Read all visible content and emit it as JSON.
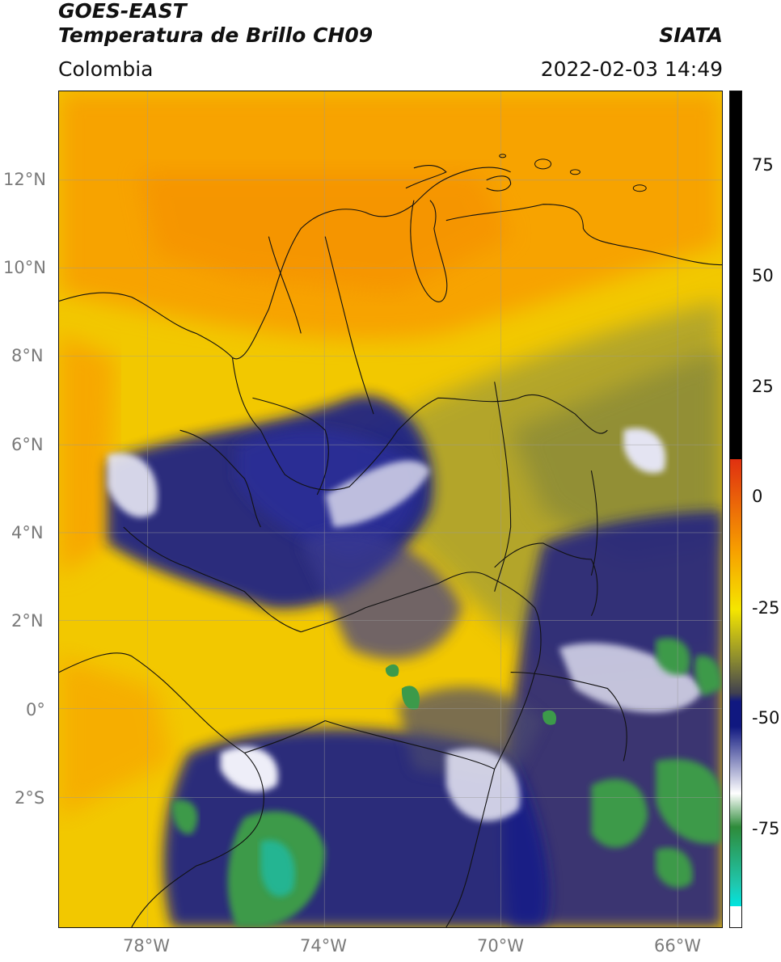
{
  "header": {
    "satellite": "GOES-EAST",
    "product": "Temperatura de Brillo CH09",
    "org": "SIATA",
    "region": "Colombia",
    "timestamp": "2022-02-03 14:49"
  },
  "map": {
    "lat_ticks": [
      "12°N",
      "10°N",
      "8°N",
      "6°N",
      "4°N",
      "2°N",
      "0°",
      "2°S"
    ],
    "lon_ticks": [
      "78°W",
      "74°W",
      "70°W",
      "66°W"
    ]
  },
  "colorbar": {
    "tick_labels": [
      "75",
      "50",
      "25",
      "0",
      "-25",
      "-50",
      "-75"
    ],
    "colors": [
      "#000000",
      "#e03010",
      "#f7a000",
      "#f5e600",
      "#8a8a30",
      "#404050",
      "#101880",
      "#ffffff",
      "#2e8b3a",
      "#1fc8b0",
      "#00e5e0"
    ]
  }
}
